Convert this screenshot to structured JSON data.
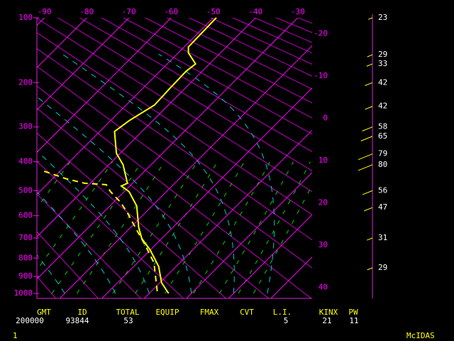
{
  "chart_data": {
    "type": "skew-t",
    "xlim": [
      -91.8,
      -26.6
    ],
    "xticks": [
      -90,
      -80,
      -70,
      -60,
      -50,
      -40,
      -30
    ],
    "isotherm_labels": [
      -20,
      -10,
      0,
      10,
      20,
      30,
      40
    ],
    "ylim": [
      100,
      1000
    ],
    "yticks": [
      100,
      200,
      300,
      400,
      500,
      600,
      700,
      800,
      900,
      1000
    ],
    "y_exponent": 0.286,
    "axis_color": "#ff00ff",
    "series": [
      {
        "color": "#ffff00",
        "dashed": false,
        "pressure": [
          1000,
          936,
          845,
          759,
          703,
          651,
          560,
          504,
          483,
          473,
          410,
          374,
          312,
          284,
          247,
          211,
          179,
          166,
          148,
          139,
          100
        ],
        "values": [
          4.6,
          0.4,
          -4.1,
          -10,
          -14.7,
          -18.1,
          -23.6,
          -28.8,
          -32,
          -31.2,
          -36.6,
          -40.9,
          -46.5,
          -45.6,
          -43.3,
          -43.6,
          -43.8,
          -43.3,
          -47.6,
          -49,
          -49.3
        ]
      },
      {
        "color": "#ffff00",
        "dashed": true,
        "pressure": [
          987,
          825,
          734,
          645,
          589,
          545,
          504,
          478,
          473,
          458,
          429
        ],
        "values": [
          1.4,
          -6.1,
          -12.4,
          -19.4,
          -24.1,
          -28.3,
          -33.2,
          -35.9,
          -41.3,
          -46.5,
          -54.4
        ]
      }
    ],
    "winds": {
      "color": "#ffff00",
      "pressure": [
        100,
        151,
        166,
        200,
        250,
        300,
        325,
        376,
        410,
        500,
        566,
        700,
        852
      ],
      "speed": [
        23,
        29,
        33,
        42,
        42,
        58,
        65,
        79,
        80,
        56,
        47,
        31,
        29
      ]
    }
  },
  "footer": [
    {
      "label": "GMT",
      "value": 200000
    },
    {
      "label": "ID",
      "value": 93844
    },
    {
      "label": "TOTAL",
      "value": 53
    },
    {
      "label": "EQUIP"
    },
    {
      "label": "FMAX"
    },
    {
      "label": "CVT"
    },
    {
      "label": "L.I.",
      "value": 5
    },
    {
      "label": "KINX",
      "value": 21
    },
    {
      "label": "PW",
      "value": 11
    }
  ],
  "status": {
    "frame": "1",
    "app": "McIDAS"
  }
}
